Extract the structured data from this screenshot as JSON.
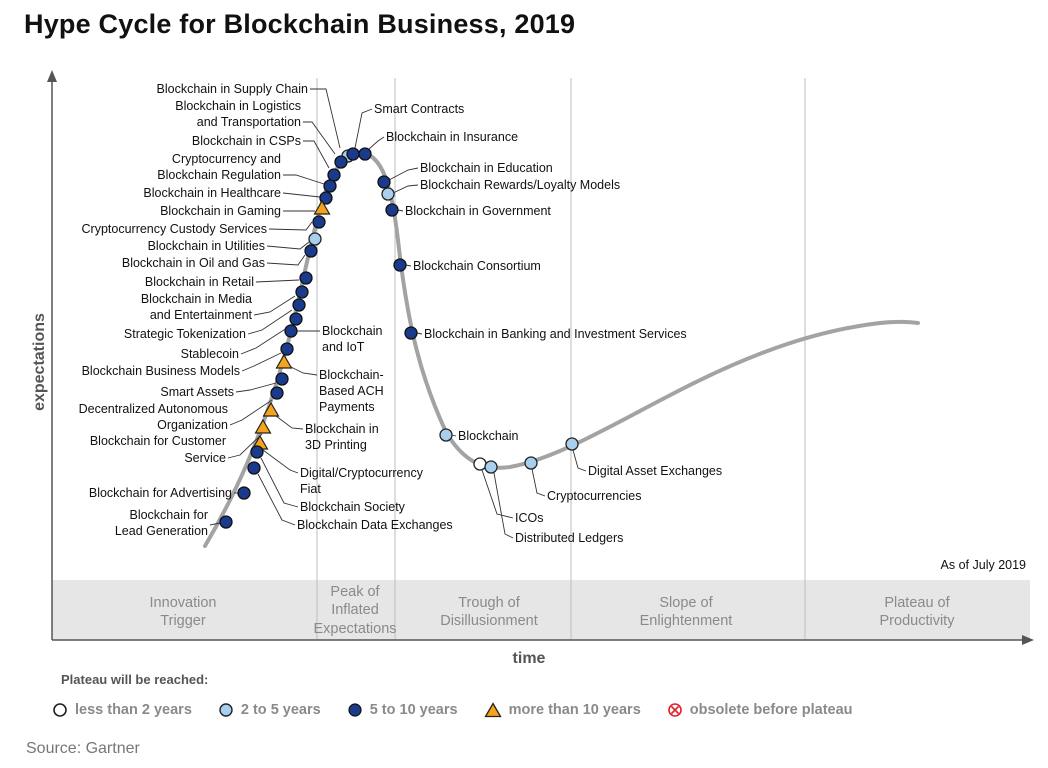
{
  "title": "Hype Cycle for Blockchain Business, 2019",
  "chart_data": {
    "type": "scatter",
    "title": "Hype Cycle for Blockchain Business, 2019",
    "xlabel": "time",
    "ylabel": "expectations",
    "as_of": "As of July 2019",
    "phases": [
      {
        "lines": [
          "Innovation",
          "Trigger"
        ]
      },
      {
        "lines": [
          "Peak of",
          "Inflated",
          "Expectations"
        ]
      },
      {
        "lines": [
          "Trough of",
          "Disillusionment"
        ]
      },
      {
        "lines": [
          "Slope of",
          "Enlightenment"
        ]
      },
      {
        "lines": [
          "Plateau of",
          "Productivity"
        ]
      }
    ],
    "categories": {
      "lt2": {
        "label": "less than 2 years",
        "color": "#ffffff"
      },
      "2to5": {
        "label": "2 to 5 years",
        "color": "#a8d0ee"
      },
      "5to10": {
        "label": "5 to 10 years",
        "color": "#1a3a8c"
      },
      "gt10": {
        "label": "more than 10 years",
        "color": "#f5a31a"
      },
      "obsolete": {
        "label": "obsolete before plateau",
        "color": "#e0202a"
      }
    },
    "technologies": [
      {
        "name": "Blockchain in Supply Chain",
        "category": "2to5"
      },
      {
        "name": "Blockchain in Logistics and Transportation",
        "category": "5to10"
      },
      {
        "name": "Blockchain in CSPs",
        "category": "5to10"
      },
      {
        "name": "Cryptocurrency and Blockchain Regulation",
        "category": "5to10"
      },
      {
        "name": "Blockchain in Healthcare",
        "category": "5to10"
      },
      {
        "name": "Blockchain in Gaming",
        "category": "gt10"
      },
      {
        "name": "Cryptocurrency Custody Services",
        "category": "5to10"
      },
      {
        "name": "Blockchain in Utilities",
        "category": "2to5"
      },
      {
        "name": "Blockchain in Oil and Gas",
        "category": "5to10"
      },
      {
        "name": "Blockchain in Retail",
        "category": "5to10"
      },
      {
        "name": "Blockchain in Media and Entertainment",
        "category": "5to10"
      },
      {
        "name": "Strategic Tokenization",
        "category": "5to10"
      },
      {
        "name": "Stablecoin",
        "category": "5to10"
      },
      {
        "name": "Blockchain and IoT",
        "category": "5to10"
      },
      {
        "name": "Blockchain Business Models",
        "category": "5to10"
      },
      {
        "name": "Blockchain-Based ACH Payments",
        "category": "gt10"
      },
      {
        "name": "Smart Assets",
        "category": "5to10"
      },
      {
        "name": "Decentralized Autonomous Organization",
        "category": "5to10"
      },
      {
        "name": "Blockchain in 3D Printing",
        "category": "gt10"
      },
      {
        "name": "Blockchain for Customer Service",
        "category": "gt10"
      },
      {
        "name": "Digital/Cryptocurrency Fiat",
        "category": "gt10"
      },
      {
        "name": "Blockchain Society",
        "category": "5to10"
      },
      {
        "name": "Blockchain for Advertising",
        "category": "5to10"
      },
      {
        "name": "Blockchain Data Exchanges",
        "category": "5to10"
      },
      {
        "name": "Blockchain for Lead Generation",
        "category": "5to10"
      },
      {
        "name": "Smart Contracts",
        "category": "5to10"
      },
      {
        "name": "Blockchain in Insurance",
        "category": "5to10"
      },
      {
        "name": "Blockchain in Education",
        "category": "5to10"
      },
      {
        "name": "Blockchain Rewards/Loyalty Models",
        "category": "2to5"
      },
      {
        "name": "Blockchain in Government",
        "category": "5to10"
      },
      {
        "name": "Blockchain Consortium",
        "category": "5to10"
      },
      {
        "name": "Blockchain in Banking and Investment Services",
        "category": "5to10"
      },
      {
        "name": "Blockchain",
        "category": "2to5"
      },
      {
        "name": "ICOs",
        "category": "lt2"
      },
      {
        "name": "Distributed Ledgers",
        "category": "2to5"
      },
      {
        "name": "Cryptocurrencies",
        "category": "2to5"
      },
      {
        "name": "Digital Asset Exchanges",
        "category": "2to5"
      }
    ]
  },
  "legend": {
    "title": "Plateau will be reached:",
    "items": [
      {
        "key": "lt2",
        "label": "less than 2 years"
      },
      {
        "key": "2to5",
        "label": "2 to 5 years"
      },
      {
        "key": "5to10",
        "label": "5 to 10 years"
      },
      {
        "key": "gt10",
        "label": "more than 10 years"
      },
      {
        "key": "obsolete",
        "label": "obsolete before plateau"
      }
    ]
  },
  "source": "Source: Gartner"
}
